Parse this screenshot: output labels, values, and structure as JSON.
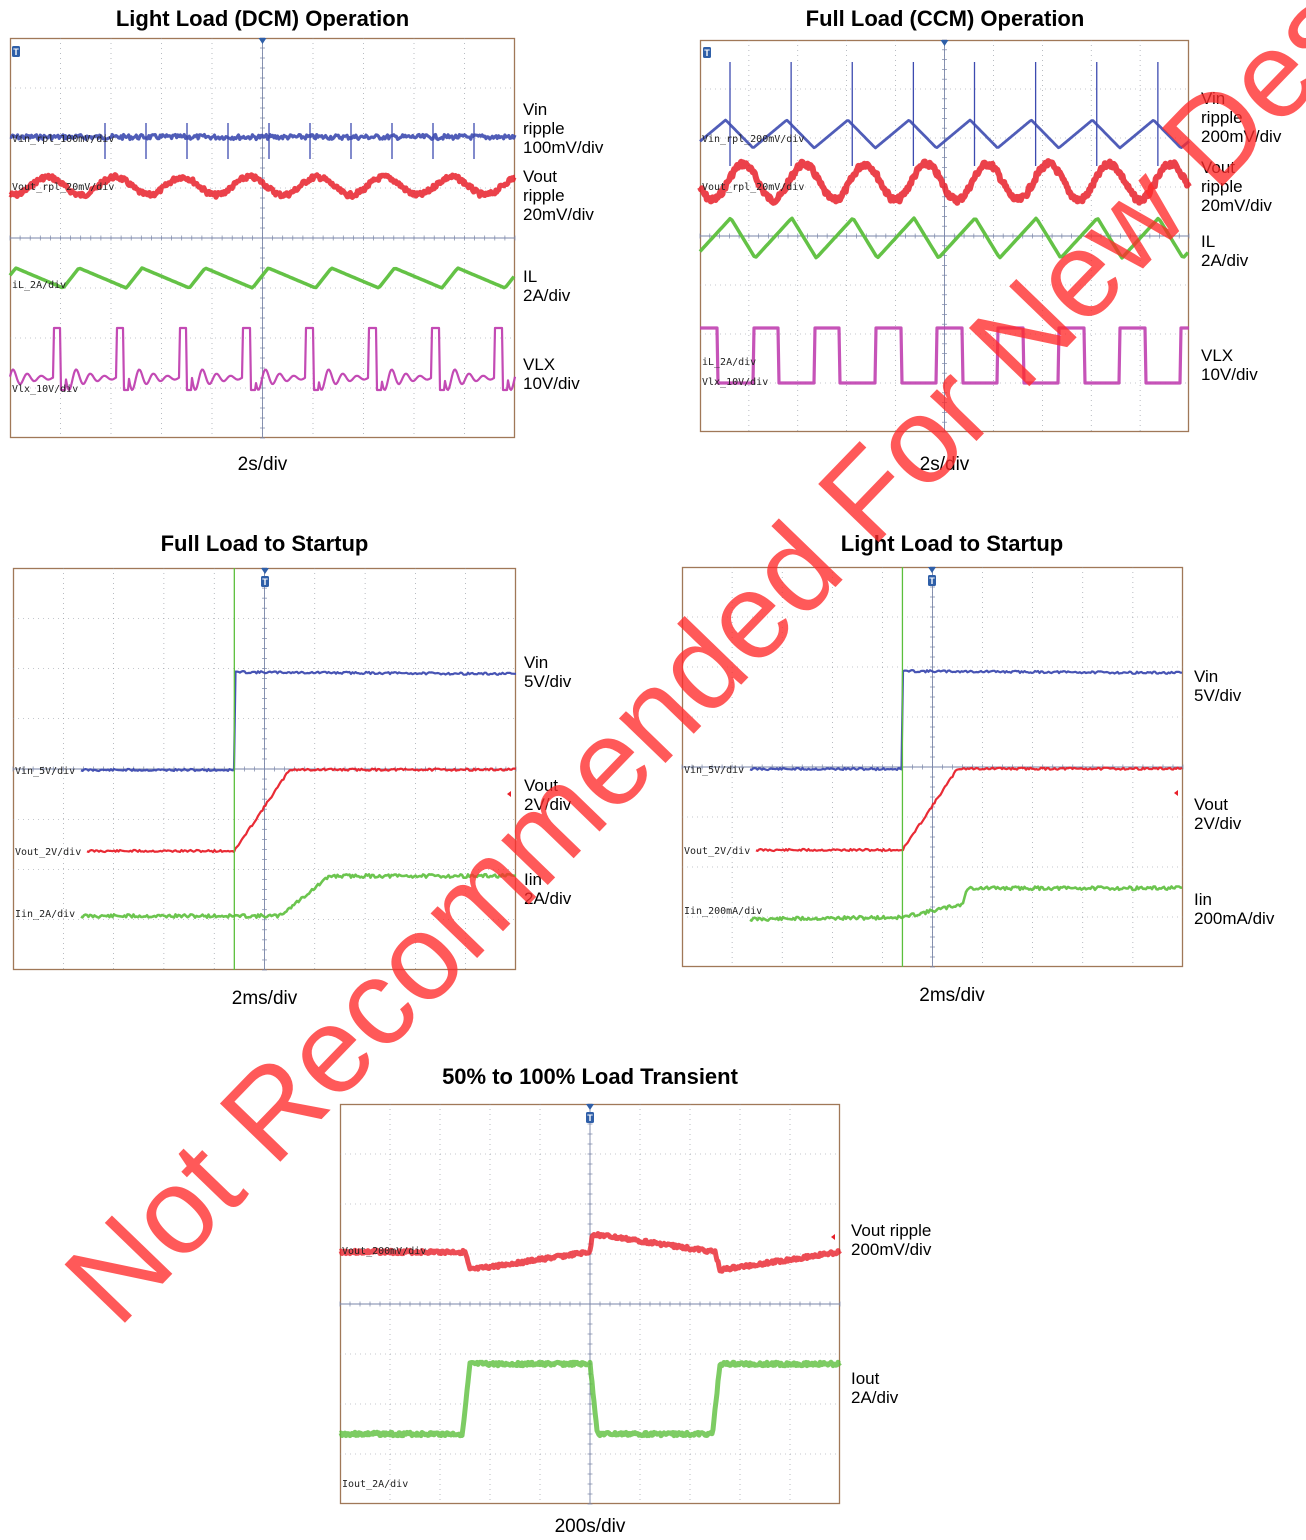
{
  "colors": {
    "vin": "#3d4bb0",
    "vout": "#e8202a",
    "current": "#5cbf3c",
    "vlx": "#c040b0",
    "grid": "#8a8f9a",
    "frame": "#a07858",
    "watermark": "#ff2a2a"
  },
  "watermark": "Not Recommended For New Designs",
  "chart_data": [
    {
      "type": "line",
      "title": "Light Load (DCM) Operation",
      "time_div": "2s/div",
      "channel_labels": [
        "Vin_rpl_100mV/div",
        "Vout_rpl_20mV/div",
        "iL_2A/div",
        "Vlx_10V/div"
      ],
      "side_labels": [
        "Vin\nripple\n100mV/div",
        "Vout\nripple\n20mV/div",
        "IL\n2A/div",
        "VLX\n10V/div"
      ],
      "grid": "10x8 divisions",
      "series": [
        {
          "name": "Vin ripple",
          "waveform": "flat with periodic spikes",
          "cycles": 10
        },
        {
          "name": "Vout ripple",
          "waveform": "sinusoidal ripple",
          "cycles": 7.5
        },
        {
          "name": "IL",
          "waveform": "triangular",
          "cycles": 8
        },
        {
          "name": "VLX",
          "waveform": "pulsed with ringing",
          "cycles": 8
        }
      ]
    },
    {
      "type": "line",
      "title": "Full Load (CCM) Operation",
      "time_div": "2s/div",
      "channel_labels": [
        "Vin_rpl_200mV/div",
        "Vout_rpl_20mV/div",
        "iL_2A/div",
        "Vlx_10V/div"
      ],
      "side_labels": [
        "Vin\nripple\n200mV/div",
        "Vout\nripple\n20mV/div",
        "IL\n2A/div",
        "VLX\n10V/div"
      ],
      "grid": "10x8 divisions",
      "series": [
        {
          "name": "Vin ripple",
          "waveform": "sawtooth with spikes",
          "cycles": 8
        },
        {
          "name": "Vout ripple",
          "waveform": "sinusoidal ripple",
          "cycles": 8
        },
        {
          "name": "IL",
          "waveform": "triangular",
          "cycles": 8
        },
        {
          "name": "VLX",
          "waveform": "square",
          "cycles": 8
        }
      ]
    },
    {
      "type": "line",
      "title": "Full Load to Startup",
      "time_div": "2ms/div",
      "channel_labels": [
        "Vin_5V/div",
        "Vout_2V/div",
        "Iin_2A/div"
      ],
      "side_labels": [
        "Vin\n5V/div",
        "Vout\n2V/div",
        "Iin\n2A/div"
      ],
      "grid": "10x8 divisions",
      "series": [
        {
          "name": "Vin",
          "x": [
            0,
            4.4,
            4.4,
            10
          ],
          "y": [
            0,
            0,
            5.1,
            5
          ]
        },
        {
          "name": "Vout",
          "x": [
            0,
            4.4,
            5.5,
            10
          ],
          "y": [
            0,
            0,
            1.66,
            1.66
          ]
        },
        {
          "name": "Iin",
          "x": [
            0,
            5.3,
            6.3,
            10
          ],
          "y": [
            0,
            0,
            1.6,
            1.6
          ]
        }
      ]
    },
    {
      "type": "line",
      "title": "Light Load to Startup",
      "time_div": "2ms/div",
      "channel_labels": [
        "Vin_5V/div",
        "Vout_2V/div",
        "Iin_200mA/div"
      ],
      "side_labels": [
        "Vin\n5V/div",
        "Vout\n2V/div",
        "Iin\n200mA/div"
      ],
      "grid": "10x8 divisions",
      "series": [
        {
          "name": "Vin",
          "x": [
            0,
            4.4,
            4.4,
            10
          ],
          "y": [
            0,
            0,
            5.1,
            5
          ]
        },
        {
          "name": "Vout",
          "x": [
            0,
            4.4,
            5.5,
            10
          ],
          "y": [
            0,
            0,
            1.66,
            1.66
          ]
        },
        {
          "name": "Iin",
          "x": [
            0,
            4.4,
            5.6,
            5.7,
            10
          ],
          "y": [
            0,
            0.05,
            0.3,
            0.6,
            0.6
          ]
        }
      ]
    },
    {
      "type": "line",
      "title": "50% to 100% Load Transient",
      "time_div": "200s/div",
      "channel_labels": [
        "Vout_200mV/div",
        "Iout_2A/div"
      ],
      "side_labels": [
        "Vout ripple\n200mV/div",
        "Iout\n2A/div"
      ],
      "grid": "10x8 divisions",
      "series": [
        {
          "name": "Vout ripple",
          "x": [
            0,
            2.5,
            2.6,
            5.0,
            5.05,
            7.5,
            7.6,
            10
          ],
          "y": [
            0,
            0,
            -0.3,
            0,
            0.3,
            0,
            -0.3,
            0
          ]
        },
        {
          "name": "Iout",
          "x": [
            0,
            2.45,
            2.6,
            5.0,
            5.15,
            7.45,
            7.6,
            10
          ],
          "y": [
            0.9,
            0.9,
            2.3,
            2.3,
            0.9,
            0.9,
            2.3,
            2.3
          ]
        }
      ]
    }
  ]
}
